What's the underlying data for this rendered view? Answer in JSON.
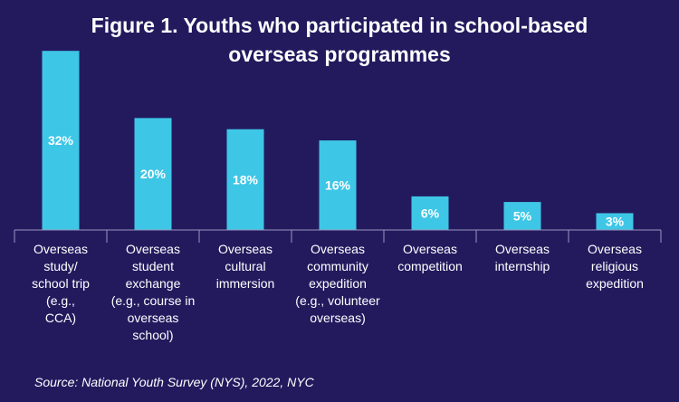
{
  "chart_data": {
    "type": "bar",
    "title_lines": [
      "Figure 1. Youths who participated in school-based",
      "overseas programmes"
    ],
    "categories": [
      [
        "Overseas",
        "study/",
        "school trip",
        "(e.g.,",
        "CCA)"
      ],
      [
        "Overseas",
        "student",
        "exchange",
        "(e.g., course in",
        "overseas",
        "school)"
      ],
      [
        "Overseas",
        "cultural",
        "immersion"
      ],
      [
        "Overseas",
        "community",
        "expedition",
        "(e.g., volunteer",
        "overseas)"
      ],
      [
        "Overseas",
        "competition"
      ],
      [
        "Overseas",
        "internship"
      ],
      [
        "Overseas",
        "religious",
        "expedition"
      ]
    ],
    "values": [
      32,
      20,
      18,
      16,
      6,
      5,
      3
    ],
    "data_labels": [
      "32%",
      "20%",
      "18%",
      "16%",
      "6%",
      "5%",
      "3%"
    ],
    "unit": "%",
    "ylim": [
      0,
      33
    ],
    "xlabel": "",
    "ylabel": "",
    "grid": false,
    "legend": "none",
    "bar_color": "#3ec6e6",
    "background_color": "#231a5e",
    "text_color": "#ffffff"
  },
  "source": "Source: National Youth Survey (NYS), 2022, NYC"
}
